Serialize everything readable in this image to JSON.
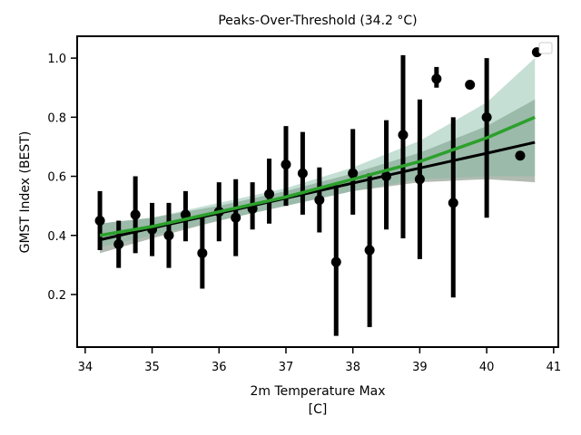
{
  "chart_data": {
    "type": "scatter",
    "title": "Peaks-Over-Threshold (34.2 °C)",
    "xlabel": [
      "2m Temperature Max",
      "[C]"
    ],
    "ylabel": "GMST Index (BEST)",
    "xlim": [
      33.88,
      41.07
    ],
    "ylim": [
      0.022,
      1.074
    ],
    "xticks": [
      34,
      35,
      36,
      37,
      38,
      39,
      40,
      41
    ],
    "yticks": [
      0.2,
      0.4,
      0.6,
      0.8,
      {
        "value": 1.0,
        "label": "1.0"
      }
    ],
    "points": {
      "color": "#000000",
      "x": [
        34.22,
        34.5,
        34.75,
        35.0,
        35.25,
        35.5,
        35.75,
        36.0,
        36.25,
        36.5,
        36.75,
        37.0,
        37.25,
        37.5,
        37.75,
        38.0,
        38.25,
        38.5,
        38.75,
        39.0,
        39.25,
        39.5,
        39.75,
        40.0,
        40.5,
        40.75
      ],
      "values": [
        0.45,
        0.37,
        0.47,
        0.42,
        0.4,
        0.47,
        0.34,
        0.48,
        0.46,
        0.49,
        0.54,
        0.64,
        0.61,
        0.52,
        0.31,
        0.61,
        0.35,
        0.6,
        0.74,
        0.59,
        0.93,
        0.51,
        0.91,
        0.8,
        0.67,
        1.02
      ],
      "low": [
        0.35,
        0.29,
        0.34,
        0.33,
        0.29,
        0.38,
        0.22,
        0.38,
        0.33,
        0.42,
        0.44,
        0.5,
        0.47,
        0.41,
        0.06,
        0.47,
        0.09,
        0.42,
        0.39,
        0.32,
        0.9,
        0.19,
        null,
        0.46,
        null,
        null
      ],
      "high": [
        0.55,
        0.45,
        0.6,
        0.51,
        0.51,
        0.55,
        0.47,
        0.58,
        0.59,
        0.58,
        0.66,
        0.77,
        0.75,
        0.63,
        0.57,
        0.76,
        0.61,
        0.79,
        1.01,
        0.86,
        0.97,
        0.8,
        null,
        1.0,
        null,
        null
      ]
    },
    "fits": [
      {
        "color": "#000000",
        "band_color": "#556b55",
        "x": [
          34.22,
          35,
          36,
          37,
          38,
          39,
          40,
          40.72
        ],
        "values": [
          0.385,
          0.425,
          0.475,
          0.526,
          0.577,
          0.628,
          0.678,
          0.715
        ],
        "lower": [
          0.34,
          0.39,
          0.45,
          0.5,
          0.55,
          0.58,
          0.59,
          0.58
        ],
        "upper": [
          0.44,
          0.46,
          0.5,
          0.55,
          0.61,
          0.68,
          0.77,
          0.86
        ]
      },
      {
        "color": "#2ca02c",
        "band_color": "#7fb8a0",
        "x": [
          34.22,
          35,
          36,
          37,
          38,
          39,
          40,
          40.72
        ],
        "values": [
          0.4,
          0.43,
          0.48,
          0.53,
          0.59,
          0.65,
          0.73,
          0.8
        ],
        "lower": [
          0.36,
          0.4,
          0.45,
          0.5,
          0.55,
          0.59,
          0.6,
          0.6
        ],
        "upper": [
          0.44,
          0.46,
          0.51,
          0.56,
          0.63,
          0.72,
          0.85,
          1.0
        ]
      }
    ]
  }
}
